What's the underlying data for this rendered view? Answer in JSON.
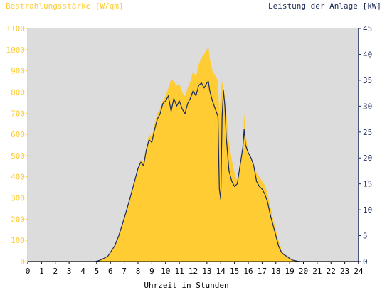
{
  "chart_data": {
    "type": "area",
    "y_left_label": "Bestrahlungsstärke [W/qm]",
    "y_right_label": "Leistung der Anlage [kW]",
    "xlabel": "Uhrzeit in Stunden",
    "xlim": [
      0,
      24
    ],
    "ylim_left": [
      0,
      1100
    ],
    "ylim_right": [
      0,
      45
    ],
    "x_ticks": [
      0,
      1,
      2,
      3,
      4,
      5,
      6,
      7,
      8,
      9,
      10,
      11,
      12,
      13,
      14,
      15,
      16,
      17,
      18,
      19,
      20,
      21,
      22,
      23,
      24
    ],
    "y_left_ticks": [
      0,
      100,
      200,
      300,
      400,
      500,
      600,
      700,
      800,
      900,
      1000,
      1100
    ],
    "y_right_ticks": [
      0,
      5,
      10,
      15,
      20,
      25,
      30,
      35,
      40,
      45
    ],
    "colors": {
      "irradiance": "#ffcc33",
      "power": "#1a2a5a",
      "plot_bg": "#dcdcdc",
      "left_axis_text": "#ffcc33",
      "right_axis_text": "#1a2a5a"
    },
    "series": [
      {
        "key": "irradiance",
        "type": "area",
        "axis": "left",
        "x": [
          0,
          4.9,
          5.2,
          5.5,
          5.8,
          6.0,
          6.3,
          6.6,
          6.9,
          7.2,
          7.5,
          7.8,
          8.0,
          8.2,
          8.4,
          8.6,
          8.8,
          9.0,
          9.2,
          9.4,
          9.6,
          9.8,
          10.0,
          10.2,
          10.4,
          10.6,
          10.8,
          11.0,
          11.2,
          11.4,
          11.6,
          11.8,
          12.0,
          12.2,
          12.4,
          12.6,
          12.8,
          13.0,
          13.1,
          13.2,
          13.4,
          13.6,
          13.8,
          13.9,
          14.0,
          14.1,
          14.2,
          14.3,
          14.4,
          14.6,
          14.8,
          15.0,
          15.2,
          15.4,
          15.6,
          15.7,
          15.8,
          16.0,
          16.2,
          16.4,
          16.6,
          16.8,
          17.0,
          17.2,
          17.4,
          17.6,
          17.8,
          18.0,
          18.2,
          18.4,
          18.6,
          18.8,
          19.0,
          19.2,
          19.4,
          19.6,
          19.8,
          20.0,
          20.2,
          24
        ],
        "values": [
          0,
          0,
          5,
          15,
          25,
          45,
          75,
          120,
          180,
          250,
          320,
          390,
          440,
          480,
          470,
          540,
          600,
          590,
          650,
          700,
          720,
          760,
          780,
          820,
          860,
          850,
          830,
          840,
          800,
          780,
          820,
          850,
          900,
          870,
          930,
          960,
          980,
          1000,
          1020,
          960,
          900,
          880,
          850,
          700,
          800,
          850,
          820,
          780,
          700,
          560,
          480,
          420,
          380,
          450,
          520,
          700,
          600,
          520,
          480,
          440,
          420,
          400,
          380,
          360,
          320,
          260,
          200,
          150,
          100,
          60,
          35,
          25,
          15,
          8,
          4,
          2,
          0,
          0,
          0,
          0
        ],
        "name": ""
      },
      {
        "key": "power",
        "type": "line",
        "axis": "right",
        "x": [
          0,
          4.9,
          5.2,
          5.5,
          5.8,
          6.0,
          6.3,
          6.6,
          6.9,
          7.2,
          7.5,
          7.8,
          8.0,
          8.2,
          8.4,
          8.6,
          8.8,
          9.0,
          9.2,
          9.4,
          9.6,
          9.8,
          10.0,
          10.2,
          10.4,
          10.6,
          10.8,
          11.0,
          11.2,
          11.4,
          11.6,
          11.8,
          12.0,
          12.2,
          12.4,
          12.6,
          12.8,
          13.0,
          13.1,
          13.2,
          13.4,
          13.6,
          13.8,
          13.9,
          14.0,
          14.1,
          14.2,
          14.3,
          14.4,
          14.6,
          14.8,
          15.0,
          15.2,
          15.4,
          15.6,
          15.7,
          15.8,
          16.0,
          16.2,
          16.4,
          16.6,
          16.8,
          17.0,
          17.2,
          17.4,
          17.6,
          17.8,
          18.0,
          18.2,
          18.4,
          18.6,
          18.8,
          19.0,
          19.2,
          19.4,
          19.6,
          19.8,
          20.0,
          20.2,
          24
        ],
        "values": [
          0,
          0,
          0.2,
          0.6,
          1.0,
          1.8,
          3.0,
          5.0,
          7.5,
          10.2,
          13.0,
          16.0,
          18.0,
          19.2,
          18.5,
          21.5,
          23.5,
          23.0,
          25.5,
          27.5,
          28.5,
          30.5,
          31.0,
          32.0,
          29.0,
          31.5,
          30.0,
          31.0,
          29.5,
          28.5,
          30.5,
          31.5,
          33.0,
          32.0,
          34.0,
          34.5,
          33.5,
          34.5,
          34.8,
          33.0,
          31.0,
          29.5,
          28.0,
          14.0,
          12.0,
          28.0,
          33.0,
          30.0,
          24.0,
          17.5,
          15.5,
          14.5,
          15.0,
          18.5,
          22.0,
          25.5,
          22.5,
          21.0,
          20.0,
          18.5,
          15.5,
          14.5,
          14.0,
          13.0,
          11.5,
          9.0,
          7.0,
          5.0,
          3.0,
          1.8,
          1.3,
          1.0,
          0.6,
          0.3,
          0.15,
          0.05,
          0,
          0,
          0,
          0
        ],
        "name": ""
      }
    ]
  }
}
